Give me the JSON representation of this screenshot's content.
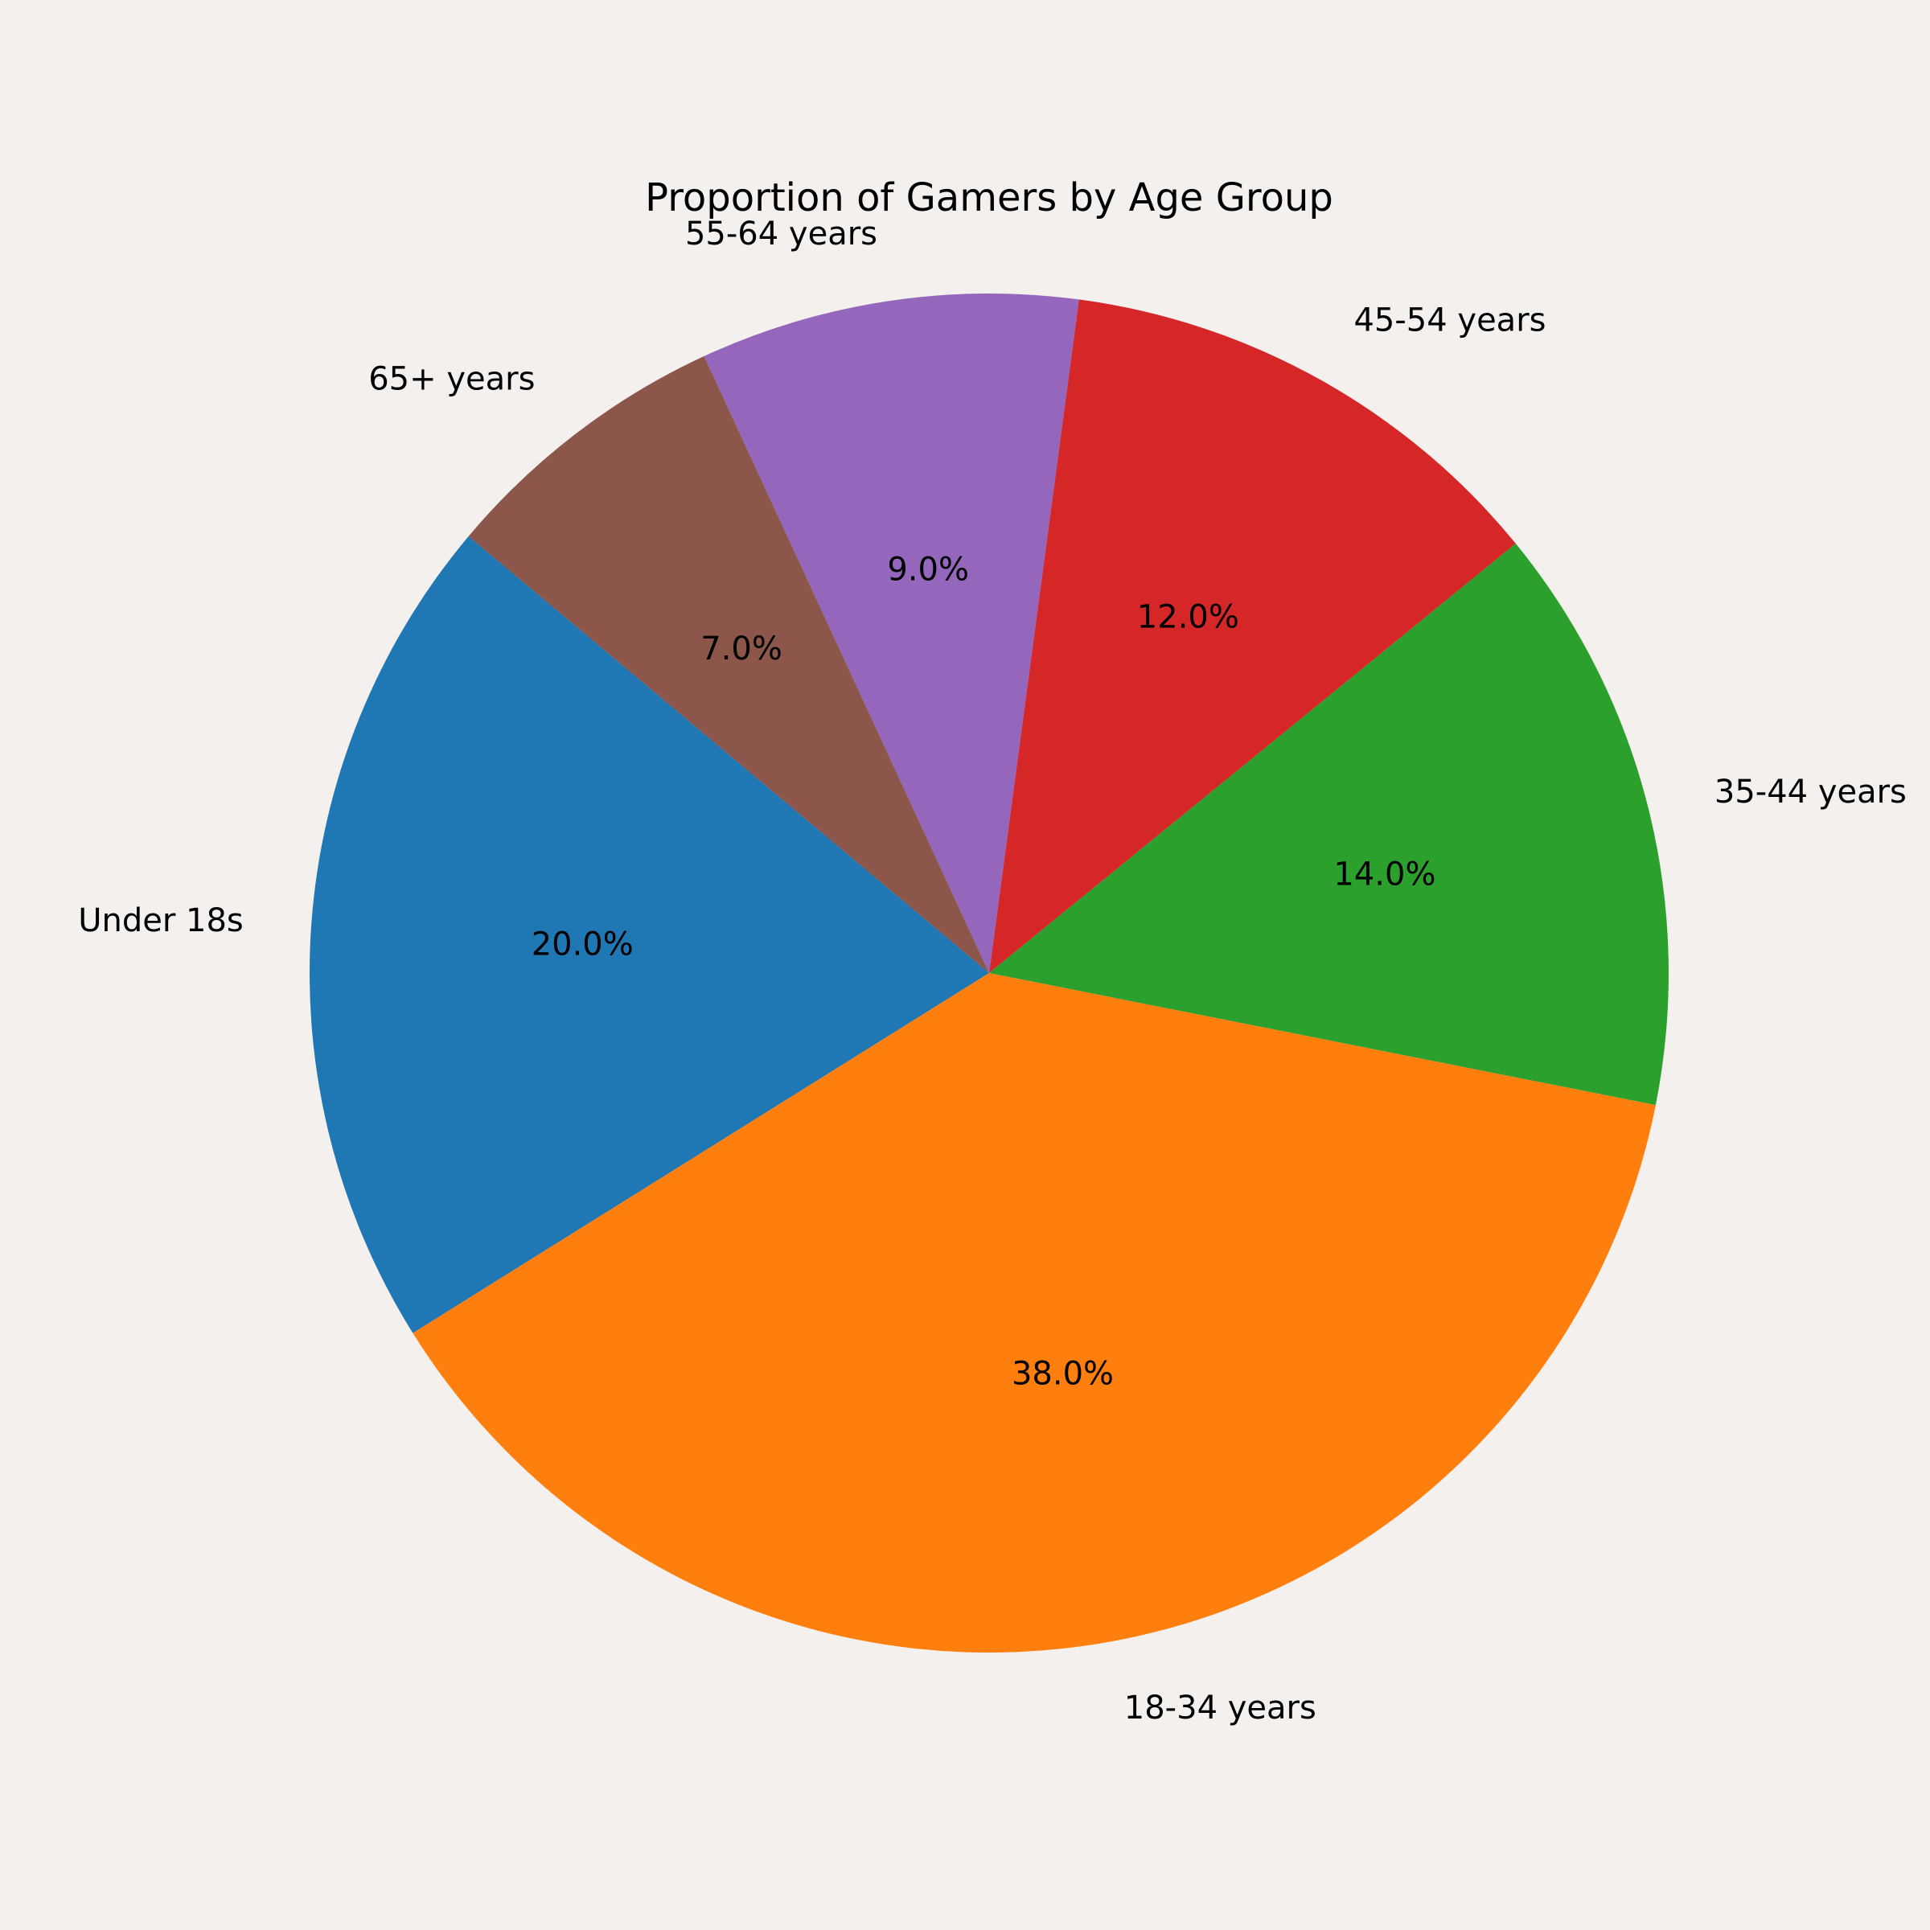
{
  "chart_data": {
    "type": "pie",
    "title": "Proportion of Gamers by Age Group",
    "categories": [
      "Under 18s",
      "18-34 years",
      "35-44 years",
      "45-54 years",
      "55-64 years",
      "65+ years"
    ],
    "values": [
      20.0,
      38.0,
      14.0,
      12.0,
      9.0,
      7.0
    ],
    "value_labels": [
      "20.0%",
      "38.0%",
      "14.0%",
      "12.0%",
      "9.0%",
      "7.0%"
    ],
    "colors": [
      "#1f77b4",
      "#ff7f0e",
      "#2ca02c",
      "#d62728",
      "#9467bd",
      "#8c564b"
    ],
    "start_angle_deg": 140,
    "direction": "counterclockwise",
    "legend": "none"
  }
}
